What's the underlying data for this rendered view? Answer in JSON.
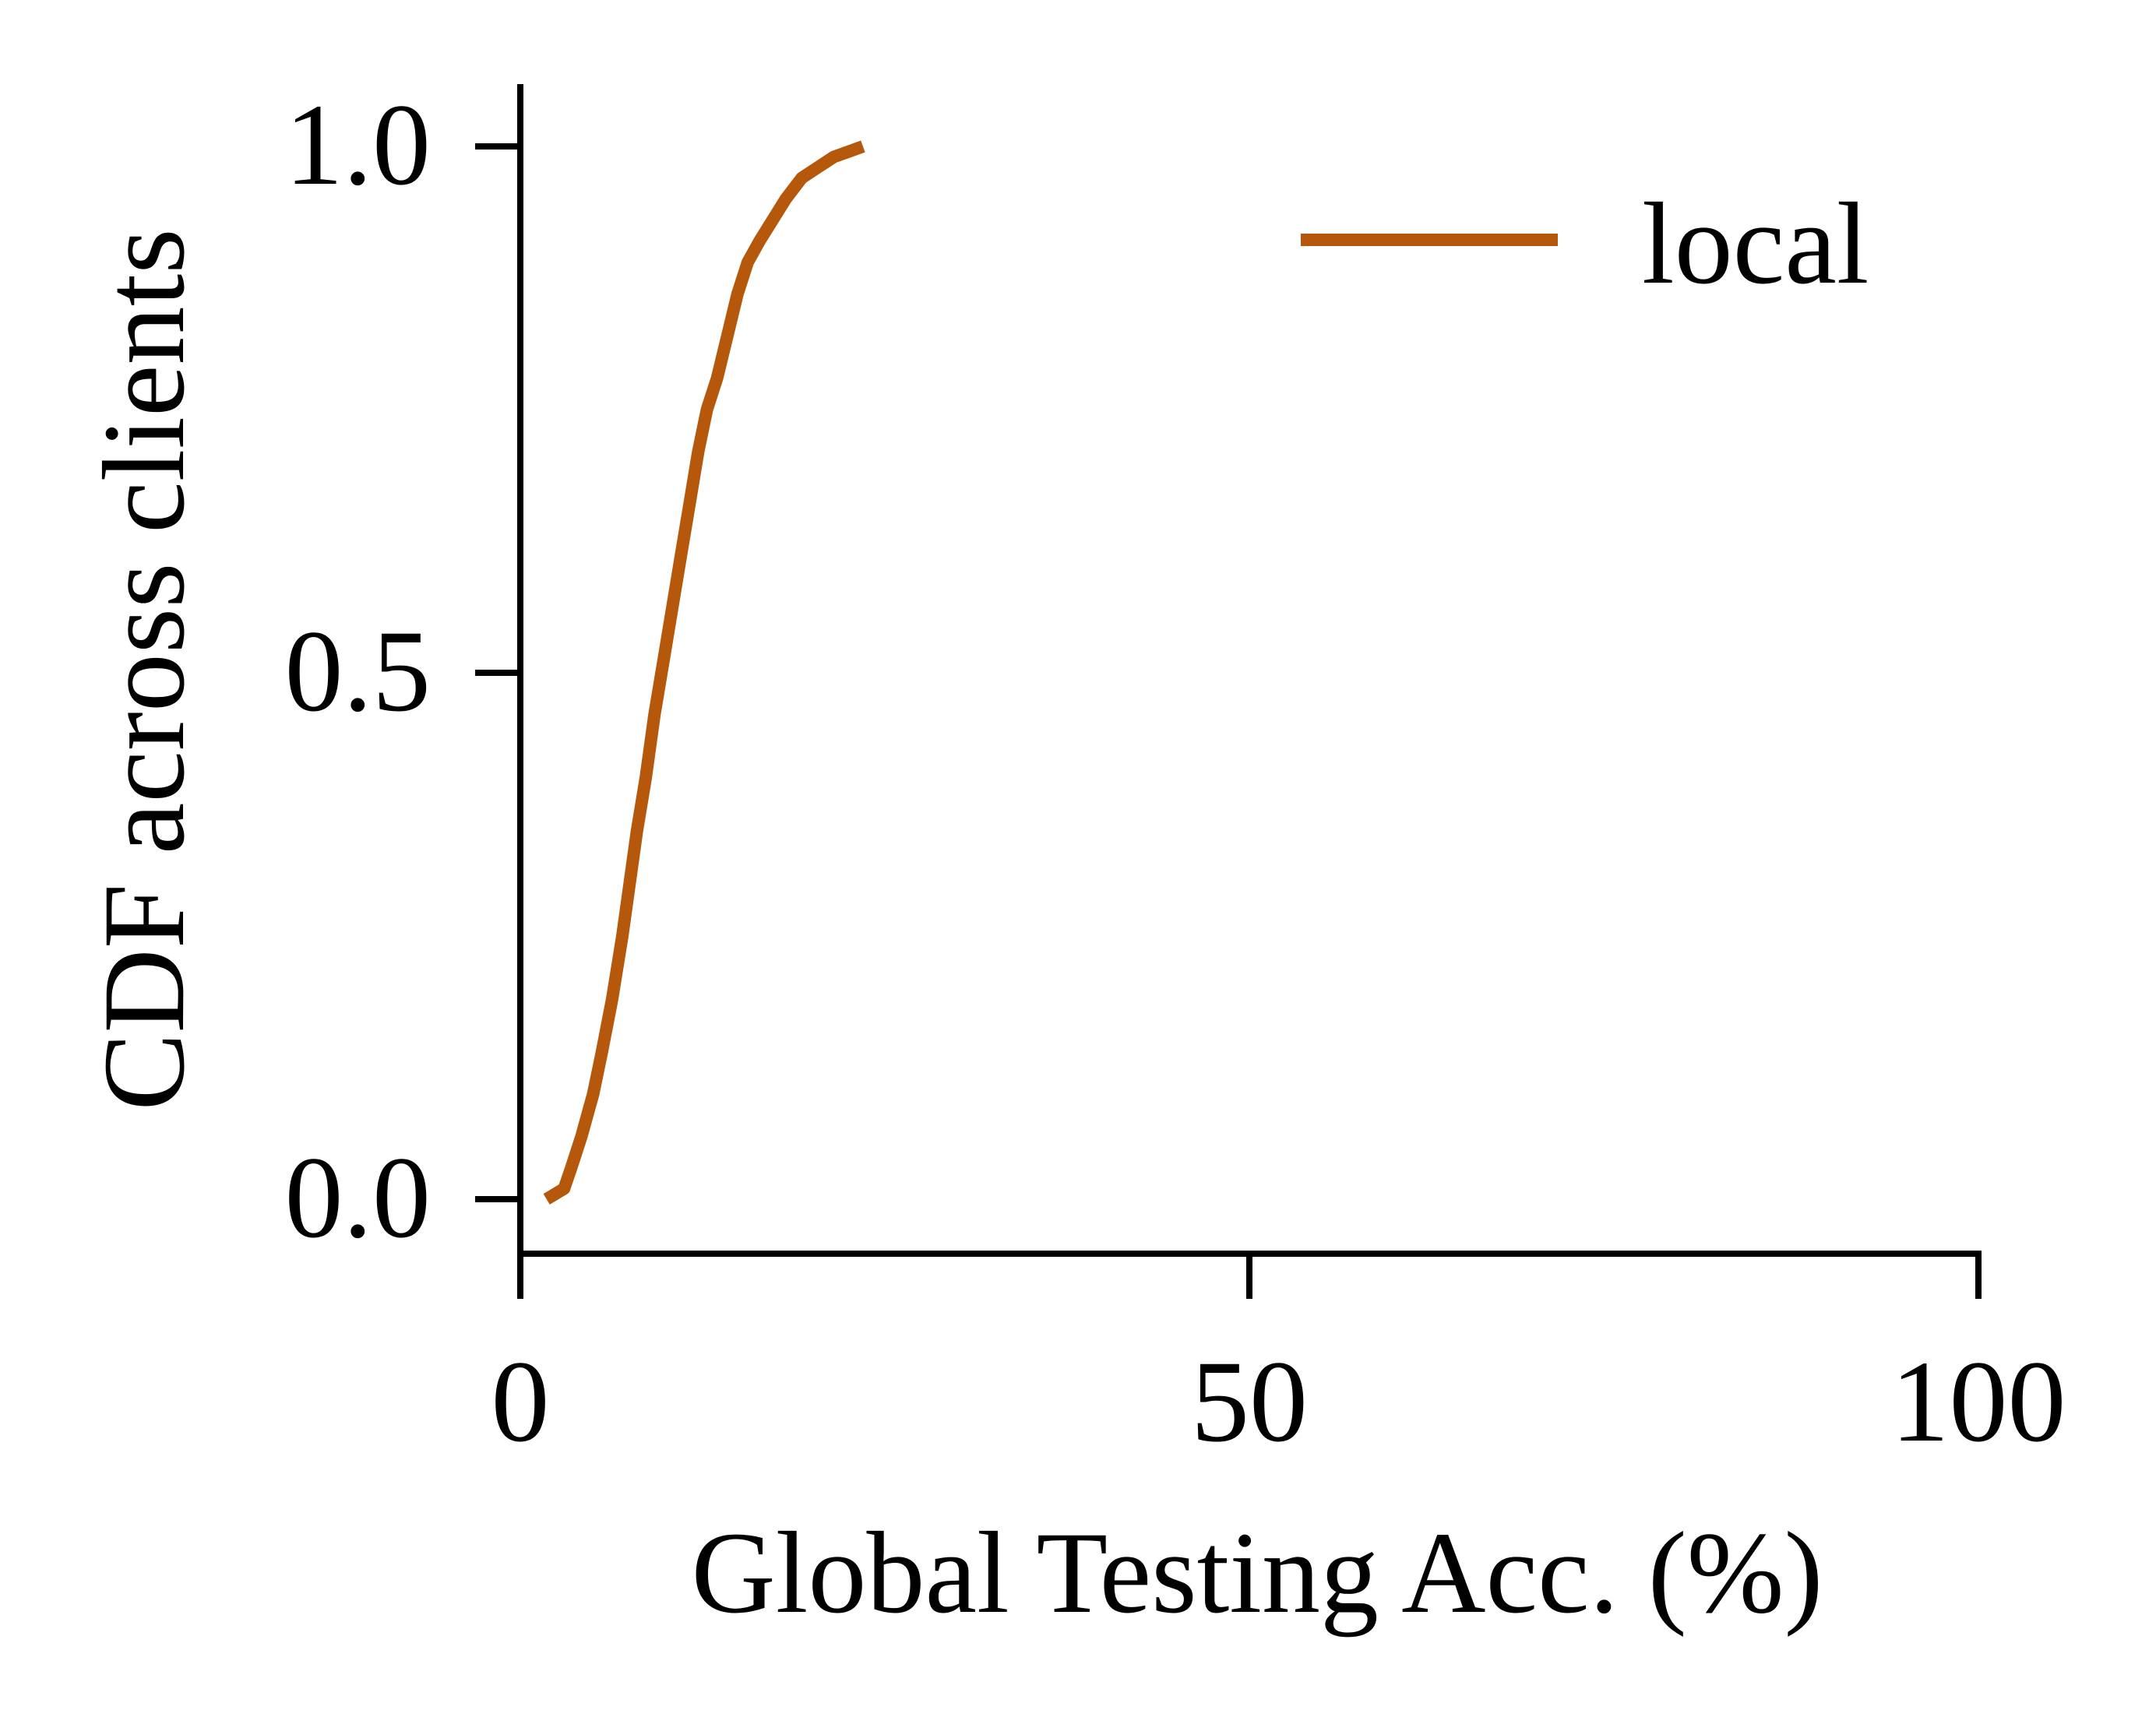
{
  "chart_data": {
    "type": "line",
    "xlabel": "Global Testing Acc. (%)",
    "ylabel": "CDF across clients",
    "xlim": [
      0,
      100
    ],
    "ylim": [
      -0.05,
      1.05
    ],
    "xticks": [
      0,
      50,
      100
    ],
    "xtick_labels": [
      "0",
      "50",
      "100"
    ],
    "yticks": [
      0.0,
      0.5,
      1.0
    ],
    "ytick_labels": [
      "0.0",
      "0.5",
      "1.0"
    ],
    "grid": false,
    "legend_position": "top-right",
    "series": [
      {
        "name": "local",
        "color": "#b5580c",
        "x": [
          1.8,
          3.0,
          3.5,
          4.2,
          5.0,
          5.6,
          6.3,
          7.0,
          7.5,
          8.0,
          8.6,
          9.2,
          9.8,
          10.4,
          11.0,
          11.6,
          12.2,
          12.8,
          13.5,
          14.2,
          14.9,
          15.6,
          16.4,
          17.3,
          18.2,
          19.3,
          20.4,
          21.5,
          22.5,
          23.5
        ],
        "y": [
          0.0,
          0.01,
          0.03,
          0.06,
          0.1,
          0.14,
          0.19,
          0.25,
          0.3,
          0.35,
          0.4,
          0.46,
          0.51,
          0.56,
          0.61,
          0.66,
          0.71,
          0.75,
          0.78,
          0.82,
          0.86,
          0.89,
          0.91,
          0.93,
          0.95,
          0.97,
          0.98,
          0.99,
          0.995,
          1.0
        ]
      }
    ]
  }
}
